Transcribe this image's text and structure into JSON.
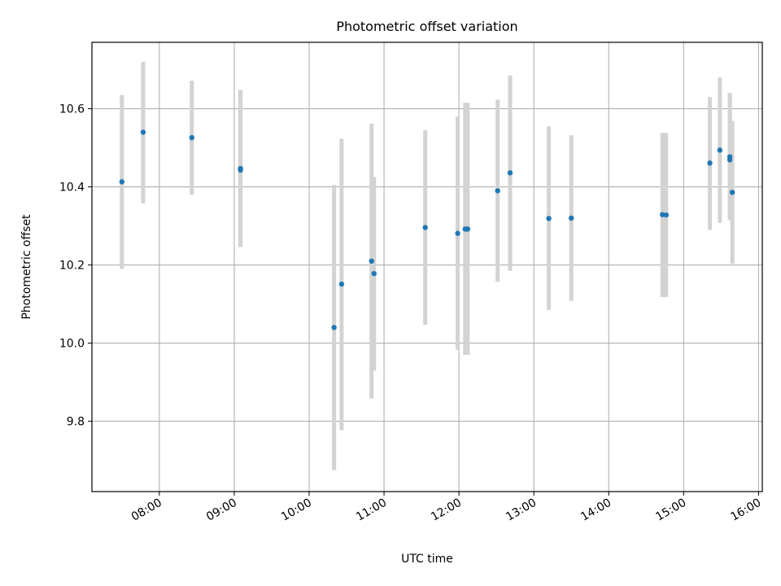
{
  "chart_data": {
    "type": "scatter",
    "title": "Photometric offset variation",
    "xlabel": "UTC time",
    "ylabel": "Photometric offset",
    "grid": true,
    "x_ticks": [
      "08:00",
      "09:00",
      "10:00",
      "11:00",
      "12:00",
      "13:00",
      "14:00",
      "15:00",
      "16:00"
    ],
    "y_ticks": [
      "9.8",
      "10.0",
      "10.2",
      "10.4",
      "10.6"
    ],
    "xlim": [
      "07:06",
      "16:03"
    ],
    "ylim": [
      9.62,
      10.77
    ],
    "colors": {
      "marker": "#1f77b4",
      "errorbar": "#d3d3d3",
      "grid": "#b0b0b0"
    },
    "points": [
      {
        "x": "07:30",
        "y": 10.413,
        "yerr_low": 10.19,
        "yerr_high": 10.635
      },
      {
        "x": "07:47",
        "y": 10.54,
        "yerr_low": 10.358,
        "yerr_high": 10.72
      },
      {
        "x": "08:26",
        "y": 10.526,
        "yerr_low": 10.38,
        "yerr_high": 10.672
      },
      {
        "x": "09:05",
        "y": 10.443,
        "yerr_low": 10.246,
        "yerr_high": 10.648
      },
      {
        "x": "09:05",
        "y": 10.447,
        "yerr_low": 10.247,
        "yerr_high": 10.645
      },
      {
        "x": "10:20",
        "y": 10.04,
        "yerr_low": 9.675,
        "yerr_high": 10.405
      },
      {
        "x": "10:26",
        "y": 10.151,
        "yerr_low": 9.777,
        "yerr_high": 10.523
      },
      {
        "x": "10:50",
        "y": 10.21,
        "yerr_low": 9.858,
        "yerr_high": 10.562
      },
      {
        "x": "10:52",
        "y": 10.178,
        "yerr_low": 9.93,
        "yerr_high": 10.425
      },
      {
        "x": "11:33",
        "y": 10.296,
        "yerr_low": 10.047,
        "yerr_high": 10.545
      },
      {
        "x": "11:59",
        "y": 10.281,
        "yerr_low": 9.983,
        "yerr_high": 10.58
      },
      {
        "x": "12:05",
        "y": 10.292,
        "yerr_low": 9.97,
        "yerr_high": 10.615
      },
      {
        "x": "12:07",
        "y": 10.292,
        "yerr_low": 9.97,
        "yerr_high": 10.615
      },
      {
        "x": "12:31",
        "y": 10.39,
        "yerr_low": 10.157,
        "yerr_high": 10.623
      },
      {
        "x": "12:41",
        "y": 10.436,
        "yerr_low": 10.185,
        "yerr_high": 10.685
      },
      {
        "x": "13:12",
        "y": 10.319,
        "yerr_low": 10.085,
        "yerr_high": 10.555
      },
      {
        "x": "13:30",
        "y": 10.32,
        "yerr_low": 10.108,
        "yerr_high": 10.532
      },
      {
        "x": "14:43",
        "y": 10.329,
        "yerr_low": 10.118,
        "yerr_high": 10.538
      },
      {
        "x": "14:46",
        "y": 10.328,
        "yerr_low": 10.118,
        "yerr_high": 10.538
      },
      {
        "x": "15:21",
        "y": 10.461,
        "yerr_low": 10.29,
        "yerr_high": 10.63
      },
      {
        "x": "15:29",
        "y": 10.494,
        "yerr_low": 10.308,
        "yerr_high": 10.68
      },
      {
        "x": "15:37",
        "y": 10.477,
        "yerr_low": 10.315,
        "yerr_high": 10.64
      },
      {
        "x": "15:37",
        "y": 10.469,
        "yerr_low": 10.315,
        "yerr_high": 10.64
      },
      {
        "x": "15:39",
        "y": 10.386,
        "yerr_low": 10.203,
        "yerr_high": 10.569
      }
    ]
  }
}
